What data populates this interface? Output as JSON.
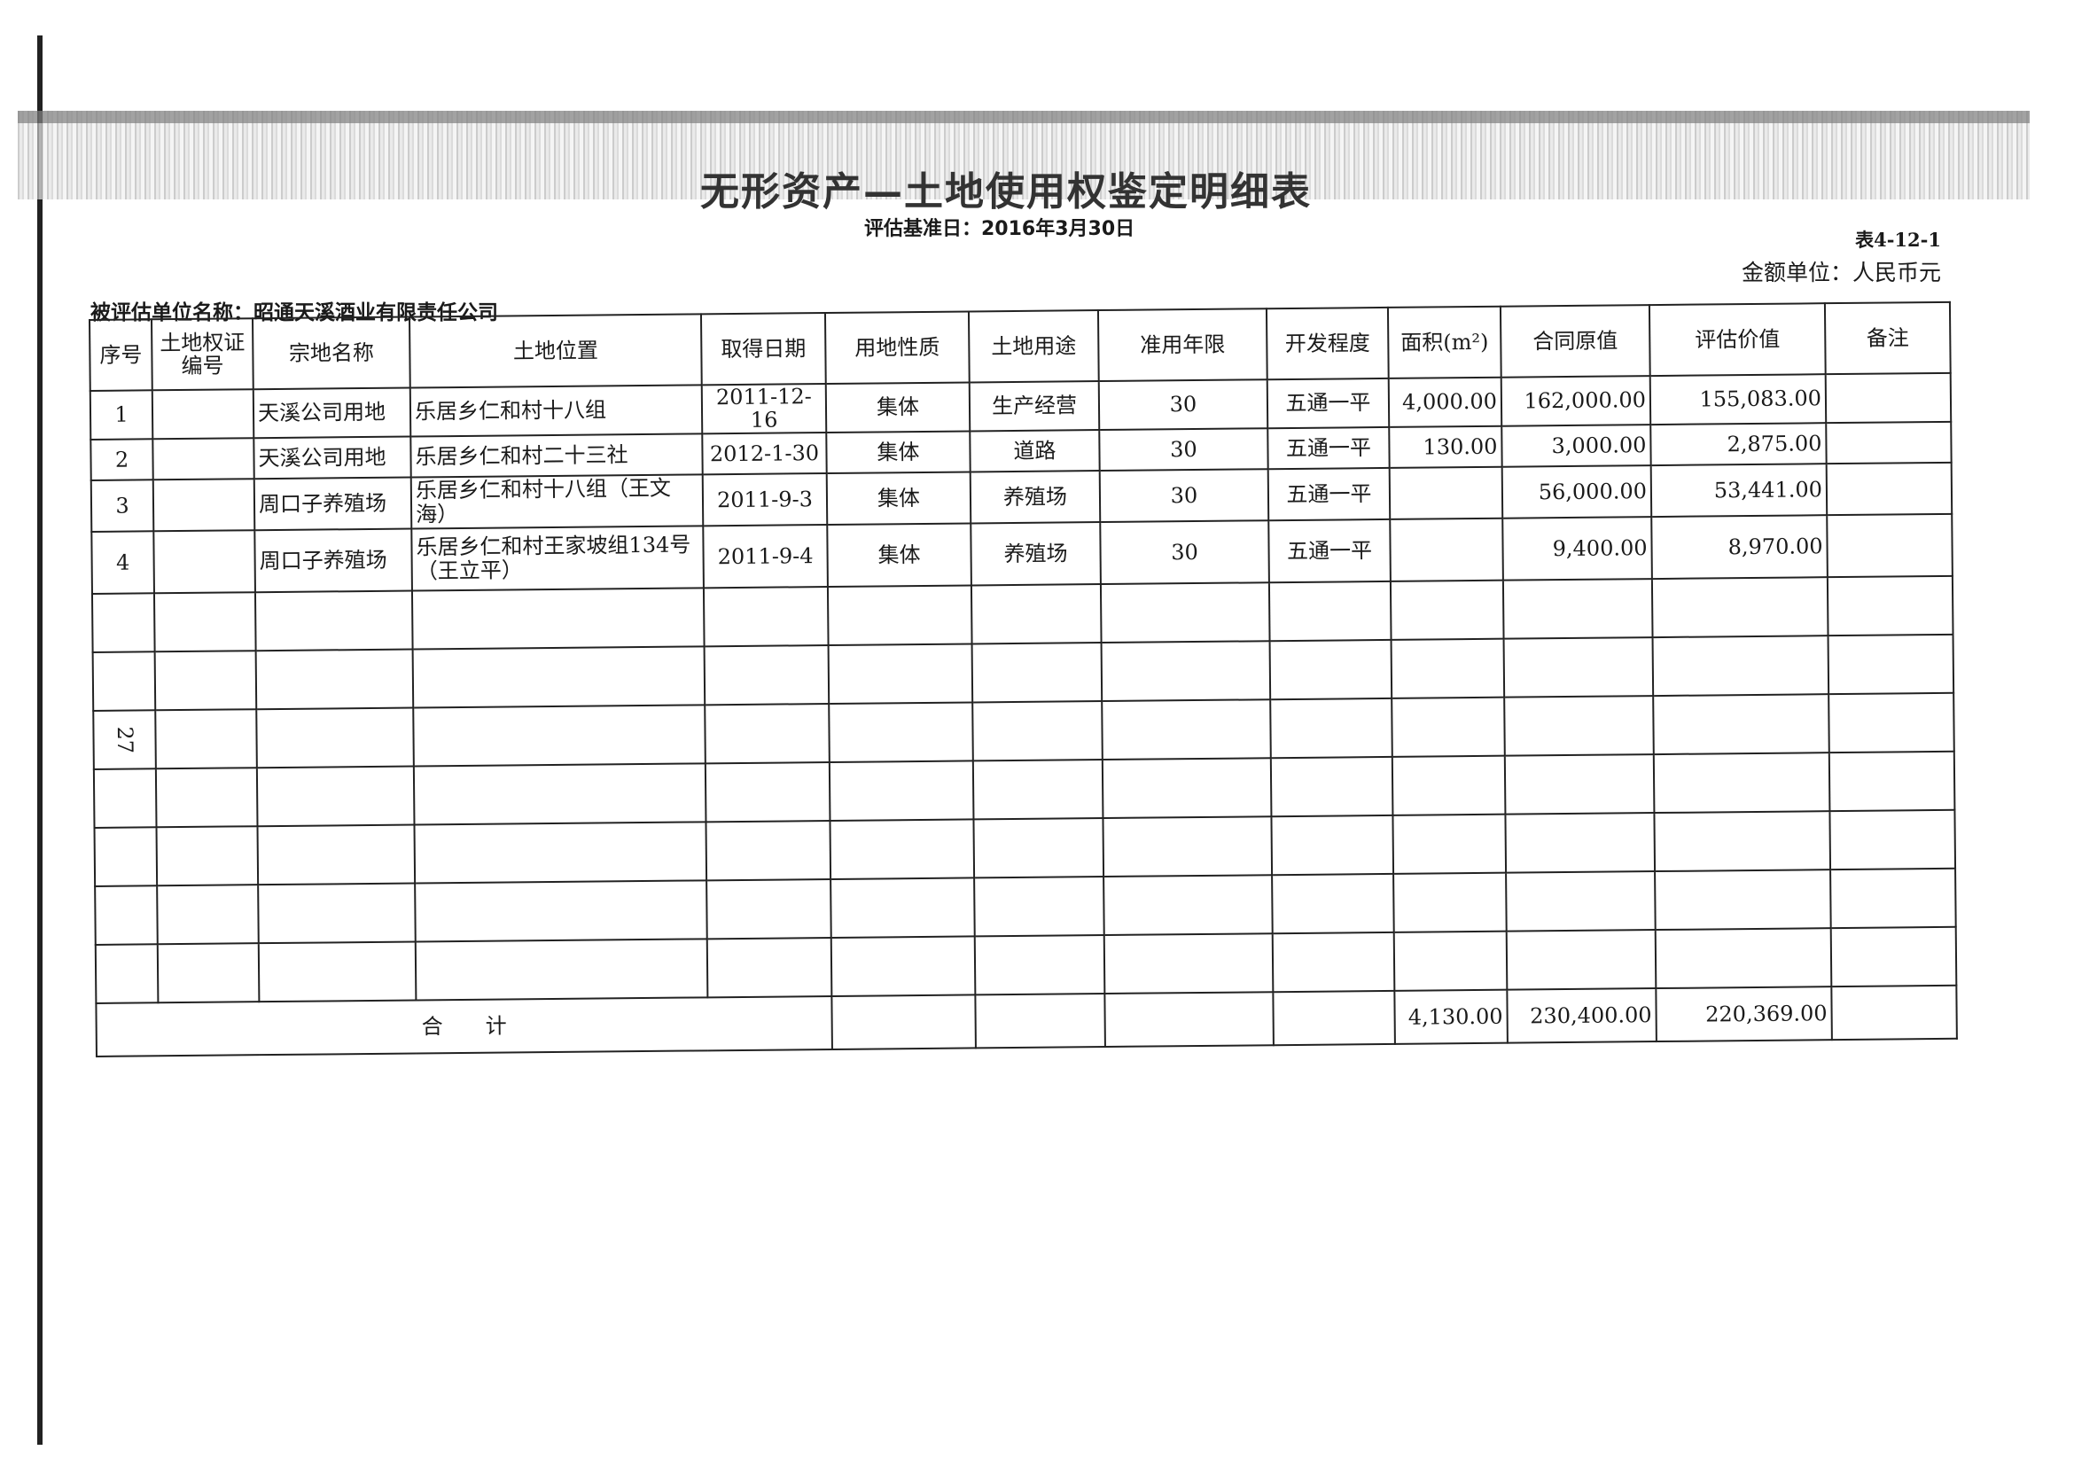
{
  "header": {
    "title": "无形资产—土地使用权鉴定明细表",
    "base_date": "评估基准日：2016年3月30日",
    "table_no": "表4-12-1",
    "currency_unit": "金额单位：人民币元",
    "company": "被评估单位名称：昭通天溪酒业有限责任公司"
  },
  "table": {
    "columns": [
      "序号",
      "土地权证编号",
      "宗地名称",
      "土地位置",
      "取得日期",
      "用地性质",
      "土地用途",
      "准用年限",
      "开发程度",
      "面积(m²)",
      "合同原值",
      "评估价值",
      "备注"
    ],
    "rows": [
      {
        "no": "1",
        "cert": "",
        "name": "天溪公司用地",
        "location": "乐居乡仁和村十八组",
        "date": "2011-12-16",
        "nature": "集体",
        "use": "生产经营",
        "years": "30",
        "dev": "五通一平",
        "area": "4,000.00",
        "contract": "162,000.00",
        "appraised": "155,083.00",
        "note": ""
      },
      {
        "no": "2",
        "cert": "",
        "name": "天溪公司用地",
        "location": "乐居乡仁和村二十三社",
        "date": "2012-1-30",
        "nature": "集体",
        "use": "道路",
        "years": "30",
        "dev": "五通一平",
        "area": "130.00",
        "contract": "3,000.00",
        "appraised": "2,875.00",
        "note": ""
      },
      {
        "no": "3",
        "cert": "",
        "name": "周口子养殖场",
        "location": "乐居乡仁和村十八组（王文海）",
        "date": "2011-9-3",
        "nature": "集体",
        "use": "养殖场",
        "years": "30",
        "dev": "五通一平",
        "area": "",
        "contract": "56,000.00",
        "appraised": "53,441.00",
        "note": ""
      },
      {
        "no": "4",
        "cert": "",
        "name": "周口子养殖场",
        "location": "乐居乡仁和村王家坡组134号（王立平）",
        "date": "2011-9-4",
        "nature": "集体",
        "use": "养殖场",
        "years": "30",
        "dev": "五通一平",
        "area": "",
        "contract": "9,400.00",
        "appraised": "8,970.00",
        "note": ""
      }
    ],
    "page_mark": "27",
    "total": {
      "label": "合　　计",
      "area": "4,130.00",
      "contract": "230,400.00",
      "appraised": "220,369.00"
    }
  }
}
